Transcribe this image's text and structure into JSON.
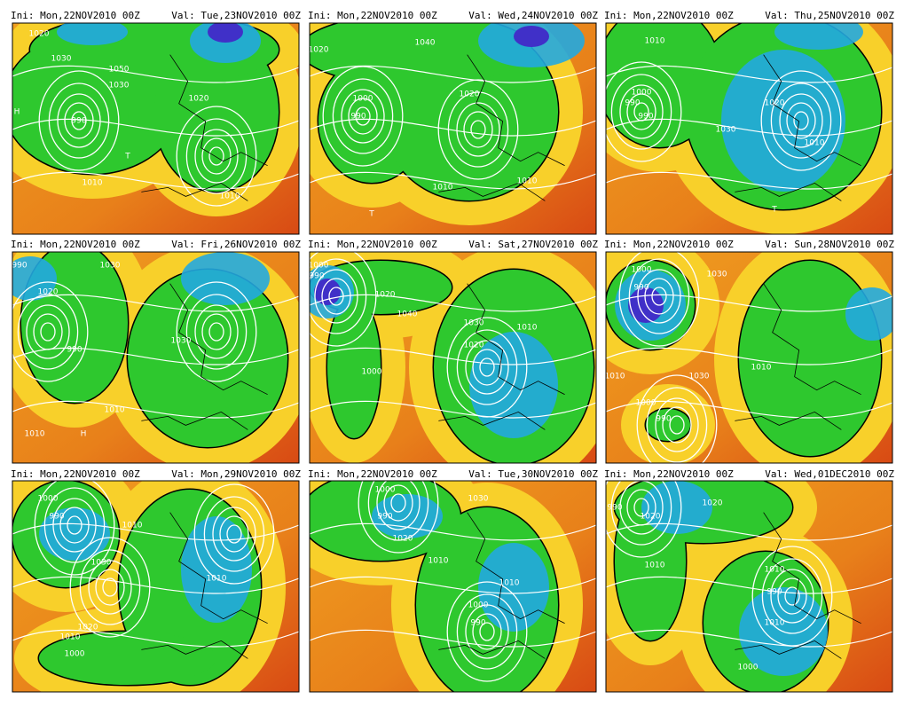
{
  "panels": [
    {
      "init": "Ini: Mon,22NOV2010 00Z",
      "valid": "Val: Tue,23NOV2010 00Z",
      "labels": [
        "1020",
        "1030",
        "1050",
        "1030",
        "990",
        "1020",
        "1010",
        "1010",
        "H",
        "T"
      ]
    },
    {
      "init": "Ini: Mon,22NOV2010 00Z",
      "valid": "Val: Wed,24NOV2010 00Z",
      "labels": [
        "1020",
        "1000",
        "990",
        "1040",
        "1020",
        "1010",
        "1010",
        "T"
      ]
    },
    {
      "init": "Ini: Mon,22NOV2010 00Z",
      "valid": "Val: Thu,25NOV2010 00Z",
      "labels": [
        "1010",
        "1000",
        "990",
        "990",
        "1030",
        "1020",
        "1010",
        "T"
      ]
    },
    {
      "init": "Ini: Mon,22NOV2010 00Z",
      "valid": "Val: Fri,26NOV2010 00Z",
      "labels": [
        "990",
        "1020",
        "1030",
        "990",
        "1030",
        "1010",
        "1010",
        "H"
      ]
    },
    {
      "init": "Ini: Mon,22NOV2010 00Z",
      "valid": "Val: Sat,27NOV2010 00Z",
      "labels": [
        "1000",
        "990",
        "1020",
        "1040",
        "1030",
        "1020",
        "1010",
        "1000"
      ]
    },
    {
      "init": "Ini: Mon,22NOV2010 00Z",
      "valid": "Val: Sun,28NOV2010 00Z",
      "labels": [
        "1000",
        "990",
        "1030",
        "1010",
        "1030",
        "1010",
        "1000",
        "990"
      ]
    },
    {
      "init": "Ini: Mon,22NOV2010 00Z",
      "valid": "Val: Mon,29NOV2010 00Z",
      "labels": [
        "1000",
        "990",
        "1010",
        "1030",
        "1020",
        "1010",
        "1010",
        "1000"
      ]
    },
    {
      "init": "Ini: Mon,22NOV2010 00Z",
      "valid": "Val: Tue,30NOV2010 00Z",
      "labels": [
        "1000",
        "990",
        "1020",
        "1010",
        "1030",
        "1010",
        "1000",
        "990"
      ]
    },
    {
      "init": "Ini: Mon,22NOV2010 00Z",
      "valid": "Val: Wed,01DEC2010 00Z",
      "labels": [
        "990",
        "1020",
        "1020",
        "1010",
        "1010",
        "990",
        "1010",
        "1000"
      ]
    }
  ]
}
